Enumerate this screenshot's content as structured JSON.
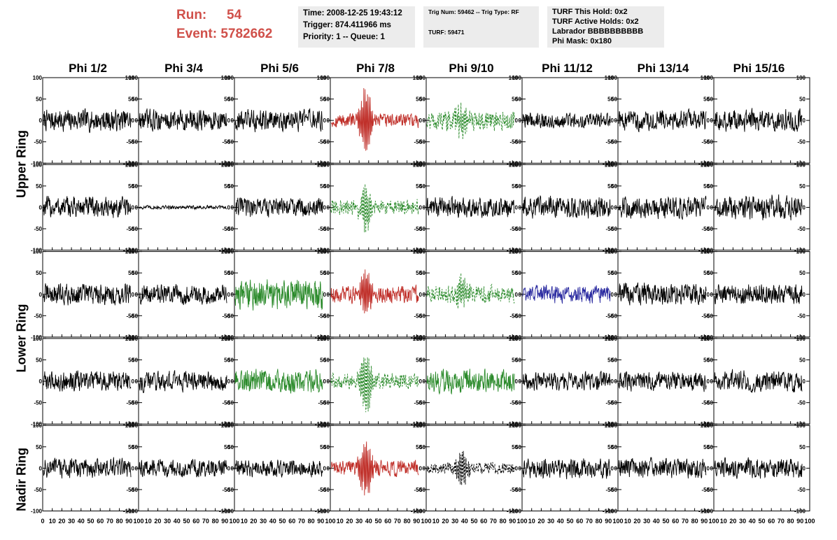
{
  "header": {
    "run_label": "Run:",
    "run_value": "54",
    "event_label": "Event:",
    "event_value": "5782662",
    "info1": [
      "Time: 2008-12-25 19:43:12",
      "Trigger: 874.411966 ms",
      "Priority: 1 -- Queue: 1"
    ],
    "info2": [
      "Trig Num: 59462 -- Trig Type: RF",
      "TURF: 59471"
    ],
    "info3": [
      "TURF This Hold: 0x2",
      "TURF Active Holds: 0x2",
      "Labrador BBBBBBBBBB",
      "Phi Mask: 0x180"
    ]
  },
  "columns": [
    "Phi 1/2",
    "Phi 3/4",
    "Phi 5/6",
    "Phi 7/8",
    "Phi 9/10",
    "Phi 11/12",
    "Phi 13/14",
    "Phi 15/16"
  ],
  "rings": [
    "Upper Ring",
    "Lower Ring",
    "Nadir Ring"
  ],
  "colors": {
    "black": "#000000",
    "red": "#c0302a",
    "green": "#2a8a2a",
    "blue": "#2a2aa0"
  },
  "chart_data": {
    "type": "line",
    "grid": false,
    "ylim": [
      -100,
      100
    ],
    "xlim": [
      0,
      100
    ],
    "y_ticks": [
      "100",
      "50",
      "0",
      "-50",
      "-100"
    ],
    "x_tick_labels": [
      "0",
      "10",
      "20",
      "30",
      "40",
      "50",
      "60",
      "70",
      "80",
      "90",
      "100"
    ],
    "panels": [
      [
        {
          "color": "black",
          "style": "solid",
          "amp": 22,
          "burst": 0
        },
        {
          "color": "black",
          "style": "solid",
          "amp": 22,
          "burst": 0
        },
        {
          "color": "black",
          "style": "solid",
          "amp": 22,
          "burst": 0
        },
        {
          "color": "red",
          "style": "solid",
          "amp": 14,
          "burst": 85
        },
        {
          "color": "green",
          "style": "dashed",
          "amp": 20,
          "burst": 40
        },
        {
          "color": "black",
          "style": "solid",
          "amp": 16,
          "burst": 0
        },
        {
          "color": "black",
          "style": "solid",
          "amp": 20,
          "burst": 0
        },
        {
          "color": "black",
          "style": "solid",
          "amp": 22,
          "burst": 0
        }
      ],
      [
        {
          "color": "black",
          "style": "solid",
          "amp": 22,
          "burst": 0
        },
        {
          "color": "black",
          "style": "solid",
          "amp": 4,
          "burst": 0
        },
        {
          "color": "black",
          "style": "solid",
          "amp": 20,
          "burst": 0
        },
        {
          "color": "green",
          "style": "dashed",
          "amp": 16,
          "burst": 55
        },
        {
          "color": "black",
          "style": "solid",
          "amp": 20,
          "burst": 0
        },
        {
          "color": "black",
          "style": "solid",
          "amp": 22,
          "burst": 0
        },
        {
          "color": "black",
          "style": "solid",
          "amp": 22,
          "burst": 0
        },
        {
          "color": "black",
          "style": "solid",
          "amp": 25,
          "burst": 0
        }
      ],
      [
        {
          "color": "black",
          "style": "solid",
          "amp": 22,
          "burst": 0
        },
        {
          "color": "black",
          "style": "solid",
          "amp": 20,
          "burst": 0
        },
        {
          "color": "green",
          "style": "solid",
          "amp": 32,
          "burst": 0
        },
        {
          "color": "red",
          "style": "solid",
          "amp": 18,
          "burst": 55
        },
        {
          "color": "green",
          "style": "dashed",
          "amp": 18,
          "burst": 35
        },
        {
          "color": "blue",
          "style": "solid",
          "amp": 18,
          "burst": 0
        },
        {
          "color": "black",
          "style": "solid",
          "amp": 22,
          "burst": 0
        },
        {
          "color": "black",
          "style": "solid",
          "amp": 20,
          "burst": 0
        }
      ],
      [
        {
          "color": "black",
          "style": "solid",
          "amp": 20,
          "burst": 0
        },
        {
          "color": "black",
          "style": "solid",
          "amp": 20,
          "burst": 0
        },
        {
          "color": "green",
          "style": "solid",
          "amp": 24,
          "burst": 0
        },
        {
          "color": "green",
          "style": "dashed",
          "amp": 16,
          "burst": 75
        },
        {
          "color": "green",
          "style": "solid",
          "amp": 24,
          "burst": 0
        },
        {
          "color": "black",
          "style": "solid",
          "amp": 18,
          "burst": 0
        },
        {
          "color": "black",
          "style": "solid",
          "amp": 20,
          "burst": 0
        },
        {
          "color": "black",
          "style": "solid",
          "amp": 22,
          "burst": 0
        }
      ],
      [
        {
          "color": "black",
          "style": "solid",
          "amp": 20,
          "burst": 0
        },
        {
          "color": "black",
          "style": "solid",
          "amp": 18,
          "burst": 0
        },
        {
          "color": "black",
          "style": "solid",
          "amp": 18,
          "burst": 0
        },
        {
          "color": "red",
          "style": "solid",
          "amp": 16,
          "burst": 70
        },
        {
          "color": "black",
          "style": "dashed",
          "amp": 12,
          "burst": 40
        },
        {
          "color": "black",
          "style": "solid",
          "amp": 20,
          "burst": 0
        },
        {
          "color": "black",
          "style": "solid",
          "amp": 20,
          "burst": 0
        },
        {
          "color": "black",
          "style": "solid",
          "amp": 20,
          "burst": 0
        }
      ]
    ]
  }
}
